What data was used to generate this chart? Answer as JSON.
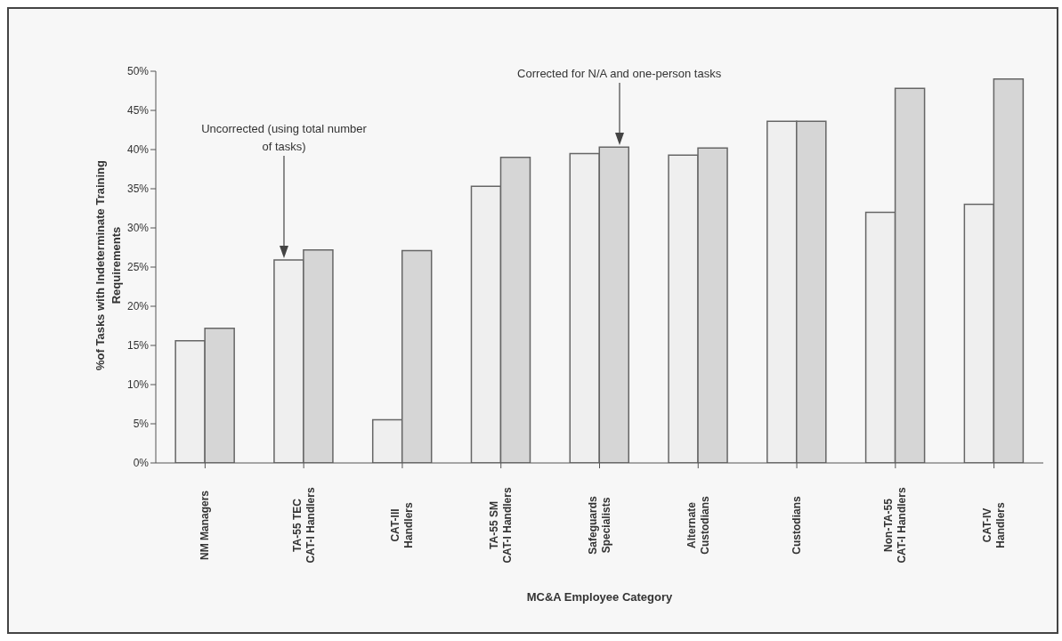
{
  "chart_data": {
    "type": "bar",
    "xlabel": "MC&A Employee Category",
    "ylabel": "%of Tasks with Indeterminate Training Requirements",
    "categories": [
      "NM Managers",
      "TA-55 TEC\nCAT-I Handlers",
      "CAT-III\nHandlers",
      "TA-55  SM\nCAT-I Handlers",
      "Safeguards\nSpecialists",
      "Alternate\nCustodians",
      "Custodians",
      "Non-TA-55\nCAT-I Handlers",
      "CAT-IV\nHandlers"
    ],
    "series": [
      {
        "color": "#efefef",
        "values": [
          15.6,
          25.9,
          5.5,
          35.3,
          39.5,
          39.3,
          43.6,
          32.0,
          33.0
        ]
      },
      {
        "color": "#d6d6d6",
        "values": [
          17.2,
          27.2,
          27.1,
          39.0,
          40.3,
          40.2,
          43.6,
          47.8,
          49.0
        ]
      }
    ],
    "ylim": [
      0,
      50
    ],
    "yticks": [
      {
        "value": 0,
        "label": "0%"
      },
      {
        "value": 5,
        "label": "5%"
      },
      {
        "value": 10,
        "label": "10%"
      },
      {
        "value": 15,
        "label": "15%"
      },
      {
        "value": 20,
        "label": "20%"
      },
      {
        "value": 25,
        "label": "25%"
      },
      {
        "value": 30,
        "label": "30%"
      },
      {
        "value": 35,
        "label": "35%"
      },
      {
        "value": 40,
        "label": "40%"
      },
      {
        "value": 45,
        "label": "45%"
      },
      {
        "value": 50,
        "label": "50%"
      }
    ],
    "grid": false,
    "legend": false,
    "annotations": [
      "Uncorrected (using total number of tasks)",
      "Corrected for N/A and one-person tasks"
    ]
  }
}
